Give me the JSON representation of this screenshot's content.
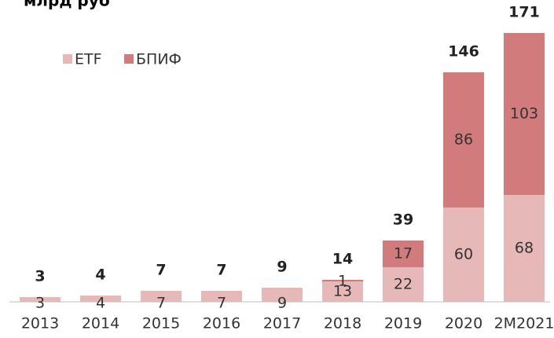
{
  "chart_data": {
    "type": "stacked_bar",
    "title": "млрд руб",
    "categories": [
      "2013",
      "2014",
      "2015",
      "2016",
      "2017",
      "2018",
      "2019",
      "2020",
      "2М2021"
    ],
    "series": [
      {
        "name": "ETF",
        "color": "#e6b9b8",
        "values": [
          3,
          4,
          7,
          7,
          9,
          13,
          22,
          60,
          68
        ]
      },
      {
        "name": "БПИФ",
        "color": "#d27b7c",
        "values": [
          null,
          null,
          null,
          null,
          null,
          1,
          17,
          86,
          103
        ]
      }
    ],
    "totals": [
      3,
      4,
      7,
      7,
      9,
      14,
      39,
      146,
      171
    ],
    "legend": "top-left"
  }
}
